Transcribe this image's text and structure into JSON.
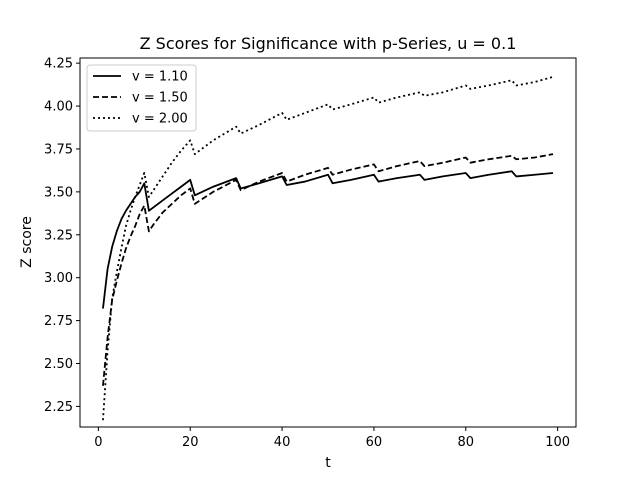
{
  "chart_data": {
    "type": "line",
    "title": "Z Scores for Significance with p-Series, u = 0.1",
    "xlabel": "t",
    "ylabel": "Z score",
    "xlim": [
      -4,
      104
    ],
    "ylim": [
      2.13,
      4.28
    ],
    "xticks": [
      0,
      20,
      40,
      60,
      80,
      100
    ],
    "yticks": [
      2.25,
      2.5,
      2.75,
      3.0,
      3.25,
      3.5,
      3.75,
      4.0,
      4.25
    ],
    "ytick_labels": [
      "2.25",
      "2.50",
      "2.75",
      "3.00",
      "3.25",
      "3.50",
      "3.75",
      "4.00",
      "4.25"
    ],
    "grid": false,
    "legend_position": "upper-left",
    "series": [
      {
        "name": "v = 1.10",
        "style": "solid",
        "color": "#000000",
        "points": [
          [
            1,
            2.82
          ],
          [
            2,
            3.05
          ],
          [
            3,
            3.18
          ],
          [
            4,
            3.27
          ],
          [
            5,
            3.34
          ],
          [
            6,
            3.39
          ],
          [
            7,
            3.43
          ],
          [
            8,
            3.47
          ],
          [
            9,
            3.5
          ],
          [
            10,
            3.55
          ],
          [
            11,
            3.39
          ],
          [
            12,
            3.41
          ],
          [
            14,
            3.45
          ],
          [
            16,
            3.49
          ],
          [
            18,
            3.53
          ],
          [
            20,
            3.57
          ],
          [
            21,
            3.48
          ],
          [
            25,
            3.53
          ],
          [
            30,
            3.58
          ],
          [
            31,
            3.52
          ],
          [
            35,
            3.55
          ],
          [
            40,
            3.59
          ],
          [
            41,
            3.54
          ],
          [
            45,
            3.56
          ],
          [
            50,
            3.6
          ],
          [
            51,
            3.55
          ],
          [
            55,
            3.57
          ],
          [
            60,
            3.6
          ],
          [
            61,
            3.56
          ],
          [
            65,
            3.58
          ],
          [
            70,
            3.6
          ],
          [
            71,
            3.57
          ],
          [
            75,
            3.59
          ],
          [
            80,
            3.61
          ],
          [
            81,
            3.58
          ],
          [
            85,
            3.6
          ],
          [
            90,
            3.62
          ],
          [
            91,
            3.59
          ],
          [
            95,
            3.6
          ],
          [
            99,
            3.61
          ]
        ]
      },
      {
        "name": "v = 1.50",
        "style": "dashed",
        "color": "#000000",
        "points": [
          [
            1,
            2.37
          ],
          [
            2,
            2.65
          ],
          [
            3,
            2.87
          ],
          [
            4,
            2.98
          ],
          [
            5,
            3.08
          ],
          [
            6,
            3.17
          ],
          [
            7,
            3.24
          ],
          [
            8,
            3.3
          ],
          [
            9,
            3.37
          ],
          [
            10,
            3.42
          ],
          [
            11,
            3.27
          ],
          [
            12,
            3.31
          ],
          [
            14,
            3.38
          ],
          [
            16,
            3.43
          ],
          [
            18,
            3.48
          ],
          [
            20,
            3.52
          ],
          [
            21,
            3.43
          ],
          [
            25,
            3.5
          ],
          [
            30,
            3.57
          ],
          [
            31,
            3.51
          ],
          [
            35,
            3.56
          ],
          [
            40,
            3.61
          ],
          [
            41,
            3.56
          ],
          [
            45,
            3.6
          ],
          [
            50,
            3.64
          ],
          [
            51,
            3.6
          ],
          [
            55,
            3.63
          ],
          [
            60,
            3.66
          ],
          [
            61,
            3.62
          ],
          [
            65,
            3.65
          ],
          [
            70,
            3.68
          ],
          [
            71,
            3.65
          ],
          [
            75,
            3.67
          ],
          [
            80,
            3.7
          ],
          [
            81,
            3.67
          ],
          [
            85,
            3.69
          ],
          [
            90,
            3.71
          ],
          [
            91,
            3.69
          ],
          [
            95,
            3.7
          ],
          [
            99,
            3.72
          ]
        ]
      },
      {
        "name": "v = 2.00",
        "style": "dotted",
        "color": "#000000",
        "points": [
          [
            1,
            2.17
          ],
          [
            2,
            2.57
          ],
          [
            3,
            2.88
          ],
          [
            4,
            3.03
          ],
          [
            5,
            3.17
          ],
          [
            6,
            3.3
          ],
          [
            7,
            3.39
          ],
          [
            8,
            3.47
          ],
          [
            9,
            3.54
          ],
          [
            10,
            3.61
          ],
          [
            11,
            3.47
          ],
          [
            12,
            3.51
          ],
          [
            14,
            3.59
          ],
          [
            16,
            3.67
          ],
          [
            18,
            3.74
          ],
          [
            20,
            3.8
          ],
          [
            21,
            3.72
          ],
          [
            25,
            3.8
          ],
          [
            30,
            3.88
          ],
          [
            31,
            3.84
          ],
          [
            35,
            3.89
          ],
          [
            40,
            3.96
          ],
          [
            41,
            3.92
          ],
          [
            45,
            3.96
          ],
          [
            50,
            4.01
          ],
          [
            51,
            3.98
          ],
          [
            55,
            4.01
          ],
          [
            60,
            4.05
          ],
          [
            61,
            4.02
          ],
          [
            65,
            4.05
          ],
          [
            70,
            4.08
          ],
          [
            71,
            4.06
          ],
          [
            75,
            4.08
          ],
          [
            80,
            4.12
          ],
          [
            81,
            4.1
          ],
          [
            85,
            4.12
          ],
          [
            90,
            4.15
          ],
          [
            91,
            4.12
          ],
          [
            95,
            4.14
          ],
          [
            99,
            4.17
          ]
        ]
      }
    ]
  }
}
